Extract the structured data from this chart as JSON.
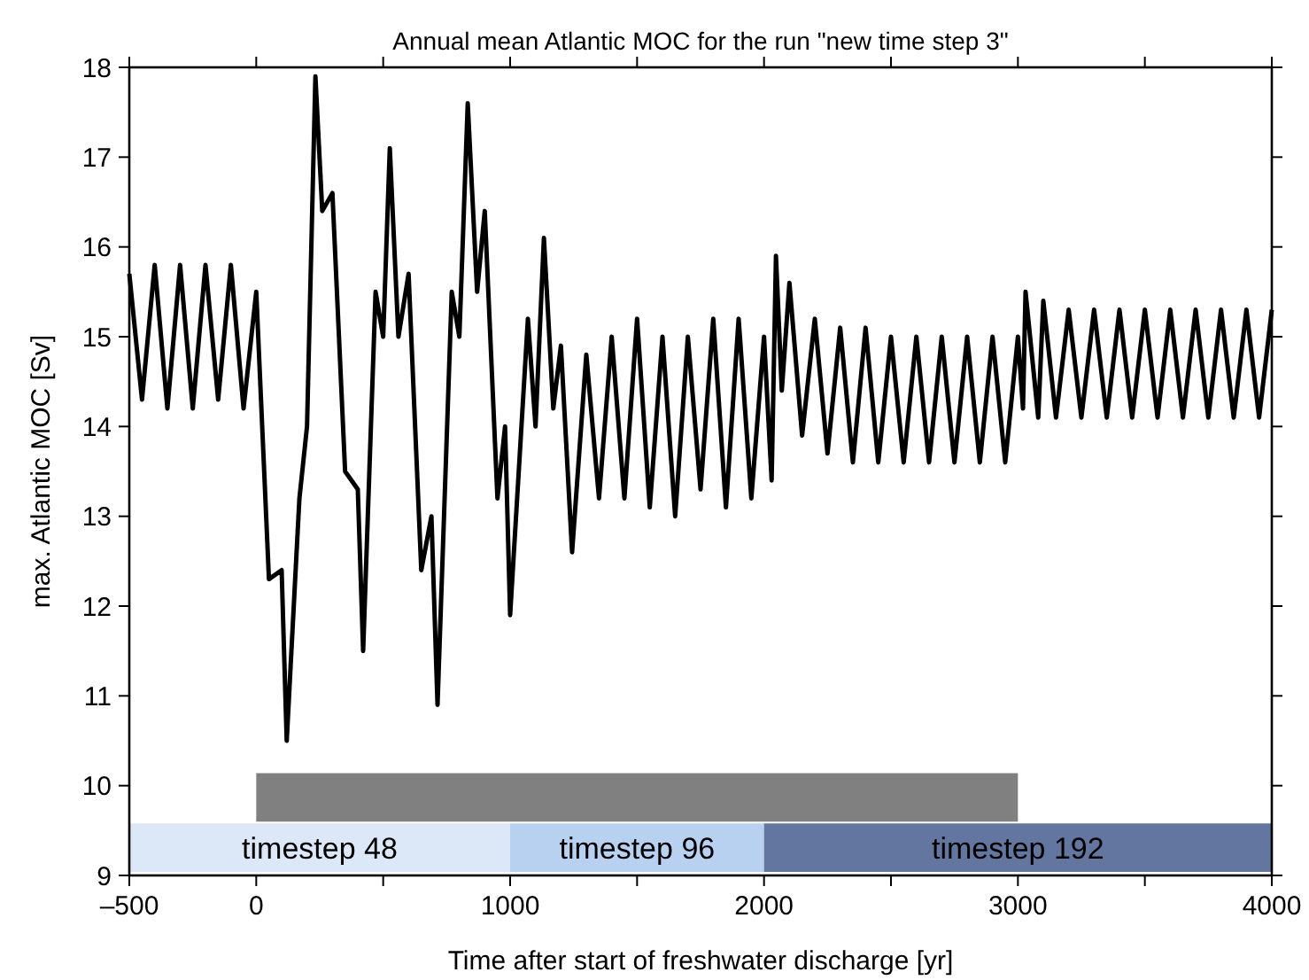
{
  "chart_data": {
    "type": "line",
    "title": "Annual mean Atlantic MOC for the run \"new time step 3\"",
    "xlabel": "Time after start of freshwater discharge [yr]",
    "ylabel": "max. Atlantic MOC [Sv]",
    "xlim": [
      -500,
      4000
    ],
    "xticks": [
      {
        "value": -500,
        "label": "–500"
      },
      0,
      1000,
      2000,
      3000,
      4000,
      {
        "value": 500,
        "label": null
      },
      {
        "value": 1500,
        "label": null
      },
      {
        "value": 2500,
        "label": null
      },
      {
        "value": 3500,
        "label": null
      }
    ],
    "ylim": [
      9,
      18
    ],
    "yticks": [
      9,
      10,
      11,
      12,
      13,
      14,
      15,
      16,
      17,
      18
    ],
    "grid": false,
    "marker": "none",
    "x": [
      -500,
      -450,
      -400,
      -350,
      -300,
      -250,
      -200,
      -150,
      -100,
      -50,
      0,
      50,
      100,
      120,
      170,
      200,
      233,
      260,
      300,
      350,
      400,
      421,
      470,
      500,
      526,
      560,
      600,
      650,
      690,
      714,
      770,
      800,
      833,
      870,
      900,
      950,
      980,
      1000,
      1070,
      1100,
      1133,
      1170,
      1200,
      1244,
      1300,
      1350,
      1400,
      1450,
      1500,
      1550,
      1600,
      1650,
      1700,
      1750,
      1800,
      1850,
      1900,
      1950,
      2000,
      2030,
      2047,
      2070,
      2100,
      2150,
      2200,
      2250,
      2300,
      2350,
      2400,
      2450,
      2500,
      2550,
      2600,
      2650,
      2700,
      2750,
      2800,
      2850,
      2900,
      2950,
      3000,
      3020,
      3030,
      3080,
      3100,
      3150,
      3200,
      3250,
      3300,
      3350,
      3400,
      3450,
      3500,
      3550,
      3600,
      3650,
      3700,
      3750,
      3800,
      3850,
      3900,
      3950,
      4000
    ],
    "series": [
      {
        "color": "#000000",
        "values": [
          15.7,
          14.3,
          15.8,
          14.2,
          15.8,
          14.2,
          15.8,
          14.3,
          15.8,
          14.2,
          15.5,
          12.3,
          12.4,
          10.5,
          13.2,
          14.0,
          17.9,
          16.4,
          16.6,
          13.5,
          13.3,
          11.5,
          15.5,
          15.0,
          17.1,
          15.0,
          15.7,
          12.4,
          13.0,
          10.9,
          15.5,
          15.0,
          17.6,
          15.5,
          16.4,
          13.2,
          14.0,
          11.9,
          15.2,
          14.0,
          16.1,
          14.2,
          14.9,
          12.6,
          14.8,
          13.2,
          15.0,
          13.2,
          15.2,
          13.1,
          15.0,
          13.0,
          15.0,
          13.3,
          15.2,
          13.1,
          15.2,
          13.2,
          15.0,
          13.4,
          15.9,
          14.4,
          15.6,
          13.9,
          15.2,
          13.7,
          15.1,
          13.6,
          15.1,
          13.6,
          15.0,
          13.6,
          15.0,
          13.6,
          15.0,
          13.6,
          15.0,
          13.6,
          15.0,
          13.6,
          15.0,
          14.2,
          15.5,
          14.1,
          15.4,
          14.1,
          15.3,
          14.1,
          15.3,
          14.1,
          15.3,
          14.1,
          15.3,
          14.1,
          15.3,
          14.1,
          15.3,
          14.1,
          15.3,
          14.1,
          15.3,
          14.1,
          15.3
        ]
      }
    ],
    "bands": [
      {
        "axis": "x",
        "from": 0,
        "to": 3000,
        "label": null,
        "color": "#808080"
      },
      {
        "axis": "x",
        "from": -500,
        "to": 1000,
        "label": "timestep 48",
        "color": "#dce8f8"
      },
      {
        "axis": "x",
        "from": 1000,
        "to": 2000,
        "label": "timestep 96",
        "color": "#b8d1f0"
      },
      {
        "axis": "x",
        "from": 2000,
        "to": 4000,
        "label": "timestep 192",
        "color": "#63769f"
      }
    ]
  }
}
